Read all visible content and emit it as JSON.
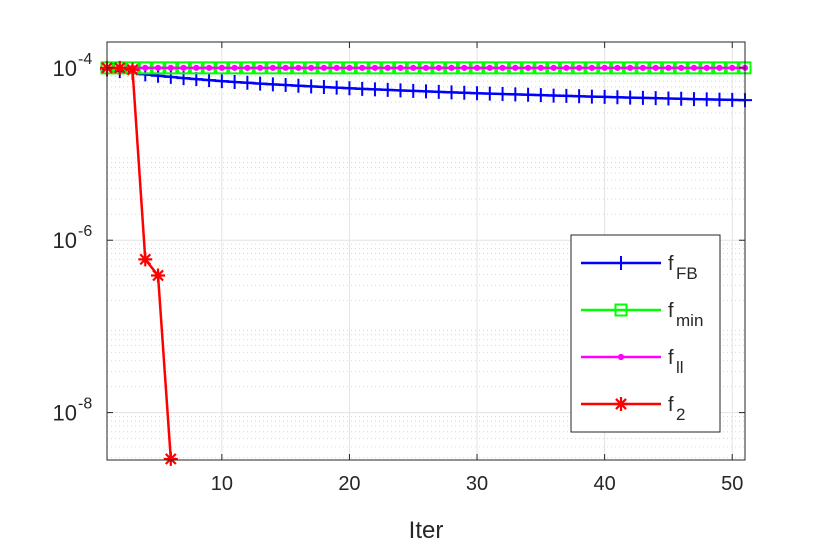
{
  "chart_data": {
    "type": "line",
    "title": "",
    "xlabel": "Iter",
    "ylabel": "",
    "xlim": [
      1,
      51
    ],
    "ylog": true,
    "ylim_log10": [
      -8.55,
      -3.7
    ],
    "xticks": [
      10,
      20,
      30,
      40,
      50
    ],
    "yticks": [
      {
        "base": "10",
        "exp": "-4",
        "value": 0.0001
      },
      {
        "base": "10",
        "exp": "-6",
        "value": 1e-06
      },
      {
        "base": "10",
        "exp": "-8",
        "value": 1e-08
      }
    ],
    "grid": true,
    "minor_grid": true,
    "legend_position": "lower-right",
    "series": [
      {
        "key": "fFB",
        "name_base": "f",
        "name_sub": "FB",
        "color": "#0000ff",
        "marker": "plus",
        "x": [
          1,
          2,
          3,
          4,
          5,
          6,
          7,
          8,
          9,
          10,
          11,
          12,
          13,
          14,
          15,
          16,
          17,
          18,
          19,
          20,
          21,
          22,
          23,
          24,
          25,
          26,
          27,
          28,
          29,
          30,
          31,
          32,
          33,
          34,
          35,
          36,
          37,
          38,
          39,
          40,
          41,
          42,
          43,
          44,
          45,
          46,
          47,
          48,
          49,
          50,
          51
        ],
        "y": [
          9.6e-05,
          9.15e-05,
          8.75e-05,
          8.4e-05,
          8.1e-05,
          7.85e-05,
          7.6e-05,
          7.4e-05,
          7.2e-05,
          7.02e-05,
          6.86e-05,
          6.71e-05,
          6.57e-05,
          6.44e-05,
          6.32e-05,
          6.2e-05,
          6.09e-05,
          5.99e-05,
          5.89e-05,
          5.8e-05,
          5.71e-05,
          5.63e-05,
          5.55e-05,
          5.47e-05,
          5.4e-05,
          5.33e-05,
          5.26e-05,
          5.2e-05,
          5.14e-05,
          5.08e-05,
          5.02e-05,
          4.97e-05,
          4.92e-05,
          4.87e-05,
          4.82e-05,
          4.77e-05,
          4.73e-05,
          4.68e-05,
          4.64e-05,
          4.6e-05,
          4.56e-05,
          4.52e-05,
          4.48e-05,
          4.45e-05,
          4.41e-05,
          4.38e-05,
          4.34e-05,
          4.31e-05,
          4.28e-05,
          4.25e-05,
          4.22e-05
        ]
      },
      {
        "key": "fmin",
        "name_base": "f",
        "name_sub": "min",
        "color": "#00ff00",
        "marker": "square",
        "x": [
          1,
          2,
          3,
          4,
          5,
          6,
          7,
          8,
          9,
          10,
          11,
          12,
          13,
          14,
          15,
          16,
          17,
          18,
          19,
          20,
          21,
          22,
          23,
          24,
          25,
          26,
          27,
          28,
          29,
          30,
          31,
          32,
          33,
          34,
          35,
          36,
          37,
          38,
          39,
          40,
          41,
          42,
          43,
          44,
          45,
          46,
          47,
          48,
          49,
          50,
          51
        ],
        "y": [
          0.0001,
          0.0001,
          0.0001,
          0.0001,
          0.0001,
          0.0001,
          0.0001,
          0.0001,
          0.0001,
          0.0001,
          0.0001,
          0.0001,
          0.0001,
          0.0001,
          0.0001,
          0.0001,
          0.0001,
          0.0001,
          0.0001,
          0.0001,
          0.0001,
          0.0001,
          0.0001,
          0.0001,
          0.0001,
          0.0001,
          0.0001,
          0.0001,
          0.0001,
          0.0001,
          0.0001,
          0.0001,
          0.0001,
          0.0001,
          0.0001,
          0.0001,
          0.0001,
          0.0001,
          0.0001,
          0.0001,
          0.0001,
          0.0001,
          0.0001,
          0.0001,
          0.0001,
          0.0001,
          0.0001,
          0.0001,
          0.0001,
          0.0001,
          0.0001
        ]
      },
      {
        "key": "fll",
        "name_base": "f",
        "name_sub": "ll",
        "color": "#ff00ff",
        "marker": "dot",
        "x": [
          1,
          2,
          3,
          4,
          5,
          6,
          7,
          8,
          9,
          10,
          11,
          12,
          13,
          14,
          15,
          16,
          17,
          18,
          19,
          20,
          21,
          22,
          23,
          24,
          25,
          26,
          27,
          28,
          29,
          30,
          31,
          32,
          33,
          34,
          35,
          36,
          37,
          38,
          39,
          40,
          41,
          42,
          43,
          44,
          45,
          46,
          47,
          48,
          49,
          50,
          51
        ],
        "y": [
          0.0001,
          0.0001,
          0.0001,
          0.0001,
          0.0001,
          0.0001,
          0.0001,
          0.0001,
          0.0001,
          0.0001,
          0.0001,
          0.0001,
          0.0001,
          0.0001,
          0.0001,
          0.0001,
          0.0001,
          0.0001,
          0.0001,
          0.0001,
          0.0001,
          0.0001,
          0.0001,
          0.0001,
          0.0001,
          0.0001,
          0.0001,
          0.0001,
          0.0001,
          0.0001,
          0.0001,
          0.0001,
          0.0001,
          0.0001,
          0.0001,
          0.0001,
          0.0001,
          0.0001,
          0.0001,
          0.0001,
          0.0001,
          0.0001,
          0.0001,
          0.0001,
          0.0001,
          0.0001,
          0.0001,
          0.0001,
          0.0001,
          0.0001,
          0.0001
        ]
      },
      {
        "key": "f2",
        "name_base": "f",
        "name_sub": "2",
        "color": "#ff0000",
        "marker": "star",
        "x": [
          1,
          2,
          3,
          4,
          5,
          6
        ],
        "y": [
          0.0001,
          0.0001,
          9.5e-05,
          6e-07,
          3.9e-07,
          2.9e-09
        ]
      }
    ]
  }
}
